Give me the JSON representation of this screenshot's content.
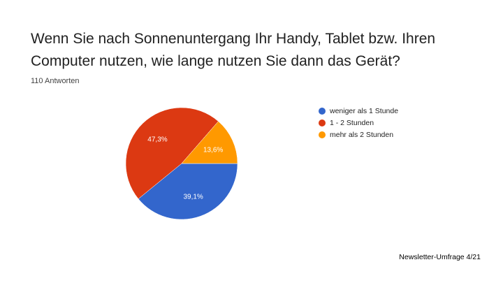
{
  "title": "Wenn Sie nach Sonnenuntergang Ihr Handy, Tablet bzw. Ihren Computer nutzen, wie lange nutzen Sie dann das Gerät?",
  "subtitle": "110 Antworten",
  "footer": "Newsletter-Umfrage 4/21",
  "chart_data": {
    "type": "pie",
    "title": "Wenn Sie nach Sonnenuntergang Ihr Handy, Tablet bzw. Ihren Computer nutzen, wie lange nutzen Sie dann das Gerät?",
    "categories": [
      "weniger als 1 Stunde",
      "1 - 2 Stunden",
      "mehr als 2 Stunden"
    ],
    "values": [
      39.1,
      47.3,
      13.6
    ],
    "labels": [
      "39,1%",
      "47,3%",
      "13,6%"
    ],
    "colors": [
      "#3366cc",
      "#dc3912",
      "#ff9900"
    ],
    "legend_position": "right"
  }
}
